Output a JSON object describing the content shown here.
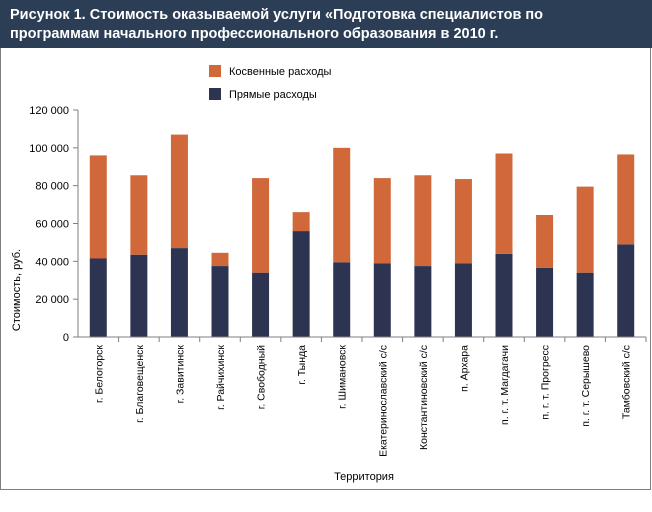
{
  "figure": {
    "title_line1": "Рисунок 1. Стоимость оказываемой услуги «Подготовка специалистов по",
    "title_line2": "программам начального профессионального образования в 2010 г."
  },
  "chart_data": {
    "type": "bar",
    "stacked": true,
    "categories": [
      "г. Белогорск",
      "г. Благовещенск",
      "г. Завитинск",
      "г. Райчихинск",
      "г. Свободный",
      "г. Тында",
      "г. Шимановск",
      "Екатеринославский с/с",
      "Константиновский с/с",
      "п. Архара",
      "п. г. т. Магдагачи",
      "п. г. т. Прогресс",
      "п. г. т. Серышево",
      "Тамбовский с/с"
    ],
    "series": [
      {
        "name": "Прямые расходы",
        "color": "#2d3452",
        "values": [
          41500,
          43500,
          47000,
          37500,
          34000,
          56000,
          39500,
          39000,
          37500,
          39000,
          44000,
          36500,
          34000,
          49000
        ]
      },
      {
        "name": "Косвенные расходы",
        "color": "#d0683a",
        "values": [
          54500,
          42000,
          60000,
          7000,
          50000,
          10000,
          60500,
          45000,
          48000,
          44500,
          53000,
          28000,
          45500,
          47500
        ]
      }
    ],
    "legend_order": [
      "Косвенные расходы",
      "Прямые расходы"
    ],
    "legend_position": "top-center",
    "ylabel": "Стоимость, руб.",
    "xlabel": "Территория",
    "ylim": [
      0,
      120000
    ],
    "yticks": [
      "0",
      "20 000",
      "40 000",
      "60 000",
      "80 000",
      "100 000",
      "120 000"
    ],
    "grid": false
  }
}
